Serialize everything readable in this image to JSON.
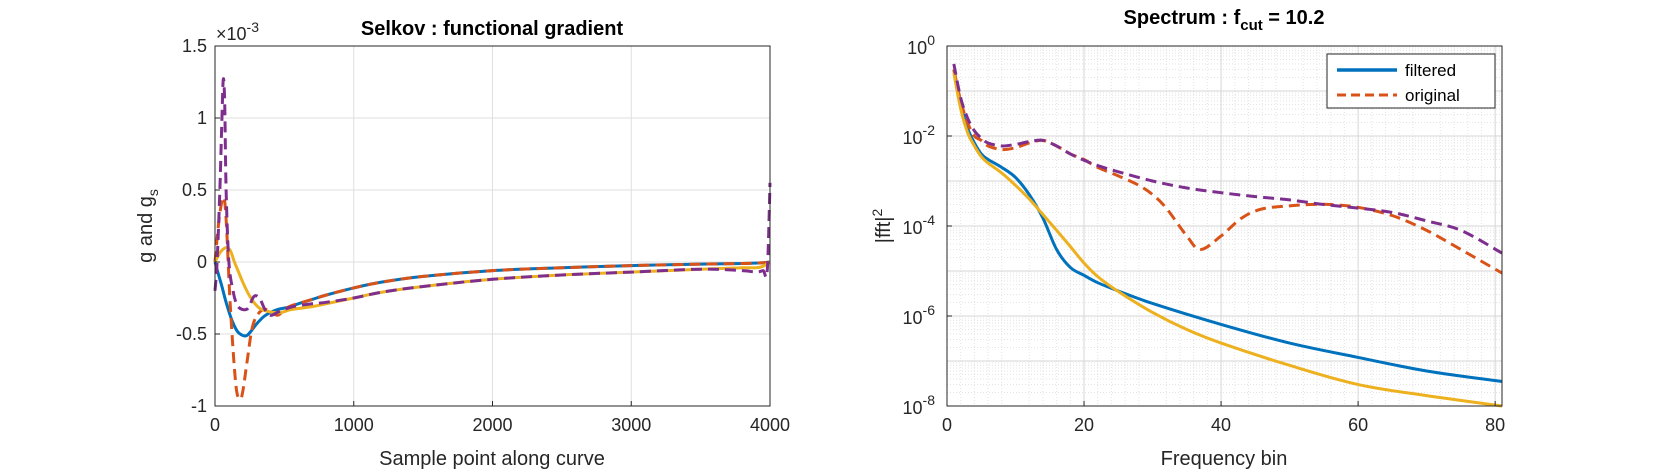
{
  "figure": {
    "left_panel": {
      "title": "Selkov : functional gradient",
      "xlabel": "Sample point along curve",
      "ylabel_main": "g and g",
      "ylabel_sub": "s",
      "exponent_prefix": "×10",
      "exponent_power": "-3"
    },
    "right_panel": {
      "title_main": "Spectrum : f",
      "title_sub": "cut",
      "title_rest": " = 10.2",
      "xlabel": "Frequency bin",
      "ylabel_main": "|fft|",
      "ylabel_sup": "2",
      "legend": [
        "filtered",
        "original"
      ]
    }
  },
  "colors": {
    "blue": "#0072BD",
    "orange": "#D95319",
    "yellow": "#EDB120",
    "purple": "#7E2F8E"
  },
  "chart_data": [
    {
      "type": "line",
      "title": "Selkov : functional gradient",
      "xlabel": "Sample point along curve",
      "ylabel": "g and g_s",
      "y_scale_factor": "1e-3",
      "xlim": [
        0,
        4000
      ],
      "ylim": [
        -1,
        1.5
      ],
      "xticks": [
        0,
        1000,
        2000,
        3000,
        4000
      ],
      "yticks": [
        -1,
        -0.5,
        0,
        0.5,
        1,
        1.5
      ],
      "grid": true,
      "series": [
        {
          "color": "blue",
          "style": "solid",
          "x": [
            0,
            20,
            50,
            80,
            120,
            160,
            200,
            230,
            260,
            300,
            350,
            400,
            450,
            500,
            550,
            600,
            700,
            800,
            1000,
            1200,
            1500,
            2000,
            2500,
            3000,
            3500,
            3800,
            3950,
            4000
          ],
          "y": [
            0,
            -0.07,
            -0.17,
            -0.28,
            -0.4,
            -0.48,
            -0.51,
            -0.51,
            -0.48,
            -0.43,
            -0.38,
            -0.35,
            -0.33,
            -0.32,
            -0.31,
            -0.29,
            -0.26,
            -0.23,
            -0.18,
            -0.14,
            -0.1,
            -0.06,
            -0.04,
            -0.025,
            -0.015,
            -0.01,
            -0.005,
            0
          ]
        },
        {
          "color": "orange",
          "style": "dashed",
          "x": [
            0,
            30,
            60,
            80,
            110,
            150,
            180,
            200,
            230,
            270,
            320,
            380,
            450,
            500,
            560,
            700,
            800,
            1000,
            1200,
            1500,
            2000,
            2500,
            3000,
            3500,
            3800,
            3950,
            4000
          ],
          "y": [
            0,
            0.3,
            0.45,
            0.3,
            -0.3,
            -0.85,
            -0.95,
            -0.9,
            -0.7,
            -0.45,
            -0.35,
            -0.33,
            -0.37,
            -0.33,
            -0.3,
            -0.26,
            -0.23,
            -0.18,
            -0.14,
            -0.1,
            -0.06,
            -0.04,
            -0.025,
            -0.015,
            -0.01,
            -0.005,
            0
          ]
        },
        {
          "color": "yellow",
          "style": "solid",
          "x": [
            0,
            40,
            80,
            110,
            140,
            170,
            200,
            240,
            280,
            320,
            370,
            420,
            480,
            550,
            700,
            800,
            1000,
            1200,
            1500,
            2000,
            2500,
            3000,
            3500,
            3800,
            3900,
            3950,
            4000
          ],
          "y": [
            0,
            0.07,
            0.1,
            0.08,
            0.0,
            -0.07,
            -0.14,
            -0.22,
            -0.28,
            -0.32,
            -0.34,
            -0.35,
            -0.35,
            -0.33,
            -0.31,
            -0.29,
            -0.25,
            -0.21,
            -0.17,
            -0.12,
            -0.09,
            -0.07,
            -0.05,
            -0.04,
            -0.04,
            -0.03,
            0.0
          ]
        },
        {
          "color": "purple",
          "style": "dashed",
          "x": [
            0,
            15,
            35,
            50,
            60,
            70,
            80,
            100,
            130,
            160,
            200,
            240,
            280,
            320,
            360,
            400,
            450,
            500,
            560,
            700,
            800,
            1000,
            1200,
            1500,
            2000,
            2500,
            3000,
            3500,
            3800,
            3900,
            3950,
            3980,
            4000
          ],
          "y": [
            -0.2,
            0.0,
            0.5,
            1.0,
            1.27,
            1.1,
            0.5,
            0.0,
            -0.2,
            -0.3,
            -0.33,
            -0.32,
            -0.24,
            -0.25,
            -0.33,
            -0.37,
            -0.35,
            -0.33,
            -0.31,
            -0.29,
            -0.28,
            -0.25,
            -0.21,
            -0.17,
            -0.12,
            -0.09,
            -0.07,
            -0.05,
            -0.06,
            -0.07,
            -0.06,
            -0.06,
            0.55
          ]
        }
      ]
    },
    {
      "type": "line",
      "title": "Spectrum : f_cut = 10.2",
      "xlabel": "Frequency bin",
      "ylabel": "|fft|^2",
      "y_scale": "log",
      "xlim": [
        0,
        81
      ],
      "ylim": [
        1e-08,
        1
      ],
      "xticks": [
        0,
        20,
        40,
        60,
        80
      ],
      "yticks": [
        "10^0",
        "10^-2",
        "10^-4",
        "10^-6",
        "10^-8"
      ],
      "grid": true,
      "legend_position": "top-right",
      "series": [
        {
          "name": "filtered",
          "color": "blue",
          "style": "solid",
          "x": [
            1,
            2,
            3,
            4,
            5,
            6,
            8,
            10,
            12,
            14,
            16,
            18,
            20,
            22,
            25,
            30,
            40,
            50,
            60,
            70,
            81
          ],
          "y": [
            0.3,
            0.05,
            0.015,
            0.007,
            0.004,
            0.003,
            0.002,
            0.0012,
            0.0005,
            0.00015,
            3e-05,
            1.2e-05,
            8e-06,
            5.5e-06,
            3.6e-06,
            1.9e-06,
            6.5e-07,
            2.5e-07,
            1.2e-07,
            6e-08,
            3.5e-08
          ]
        },
        {
          "name": "original",
          "color": "orange",
          "style": "dashed",
          "x": [
            1,
            2,
            3,
            4,
            5,
            6,
            8,
            10,
            12,
            14,
            16,
            18,
            20,
            22,
            25,
            28,
            30,
            32,
            35,
            37,
            40,
            43,
            46,
            50,
            53,
            56,
            60,
            65,
            70,
            75,
            81
          ],
          "y": [
            0.3,
            0.06,
            0.02,
            0.01,
            0.008,
            0.006,
            0.005,
            0.0055,
            0.007,
            0.008,
            0.006,
            0.004,
            0.003,
            0.002,
            0.0013,
            0.0008,
            0.0005,
            0.00025,
            6e-05,
            3e-05,
            6e-05,
            0.00015,
            0.00024,
            0.00028,
            0.0003,
            0.0003,
            0.00026,
            0.00017,
            8e-05,
            3e-05,
            9e-06
          ]
        },
        {
          "color": "yellow",
          "style": "solid",
          "x": [
            1,
            2,
            3,
            4,
            5,
            6,
            8,
            10,
            12,
            14,
            16,
            18,
            20,
            22,
            25,
            30,
            35,
            40,
            50,
            60,
            70,
            81
          ],
          "y": [
            0.25,
            0.04,
            0.012,
            0.006,
            0.0035,
            0.0025,
            0.0015,
            0.0008,
            0.0004,
            0.00018,
            8e-05,
            3.5e-05,
            1.5e-05,
            7.5e-06,
            3.5e-06,
            1.2e-06,
            5e-07,
            2.5e-07,
            8e-08,
            3e-08,
            1.7e-08,
            1e-08
          ]
        },
        {
          "color": "purple",
          "style": "dashed",
          "x": [
            1,
            2,
            3,
            4,
            5,
            6,
            8,
            10,
            12,
            14,
            16,
            18,
            20,
            22,
            25,
            30,
            35,
            40,
            45,
            50,
            55,
            60,
            65,
            70,
            75,
            81
          ],
          "y": [
            0.4,
            0.07,
            0.025,
            0.013,
            0.009,
            0.007,
            0.006,
            0.0065,
            0.0075,
            0.008,
            0.006,
            0.004,
            0.0029,
            0.0022,
            0.0016,
            0.001,
            0.0007,
            0.00055,
            0.00045,
            0.00038,
            0.0003,
            0.00025,
            0.0002,
            0.00013,
            8e-05,
            2.5e-05
          ]
        }
      ]
    }
  ]
}
